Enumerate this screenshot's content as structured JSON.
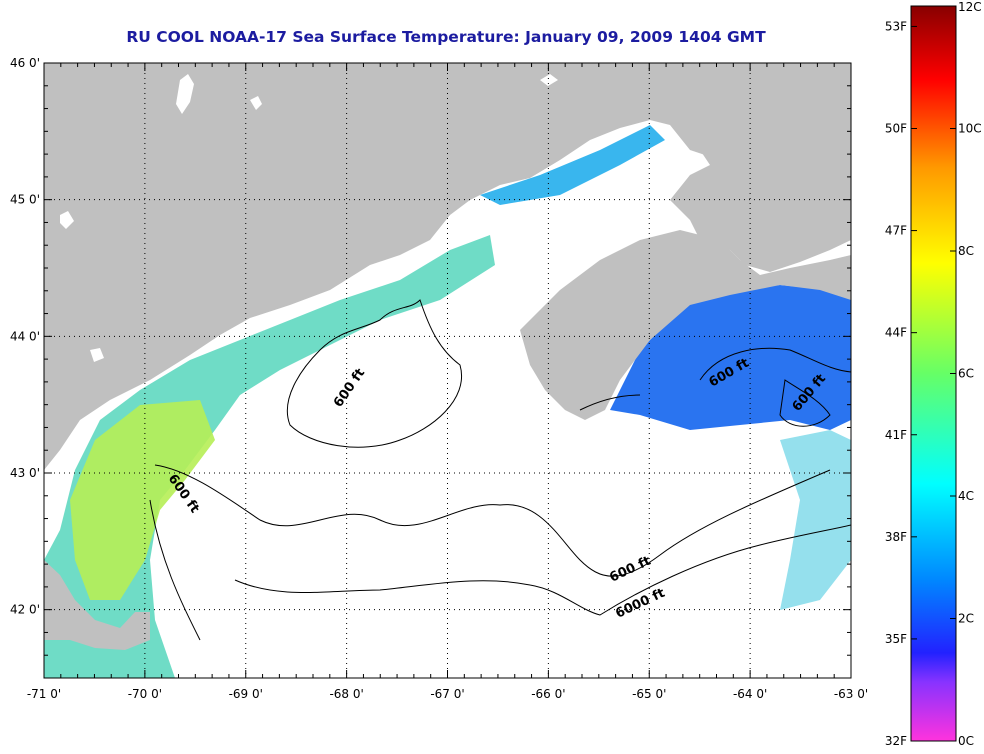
{
  "title": "RU COOL  NOAA-17  Sea Surface Temperature:  January 09, 2009 1404 GMT",
  "map": {
    "longitudes": [
      "-71 0'",
      "-70 0'",
      "-69 0'",
      "-68 0'",
      "-67 0'",
      "-66 0'",
      "-65 0'",
      "-64 0'",
      "-63 0'"
    ],
    "latitudes": [
      "46 0'",
      "45 0'",
      "44 0'",
      "43 0'",
      "42 0'"
    ],
    "lon_range": [
      -71,
      -63
    ],
    "lat_range": [
      41.5,
      46
    ],
    "contour_labels": [
      "600 ft",
      "600 ft",
      "600 ft",
      "600 ft",
      "600 ft",
      "6000 ft"
    ],
    "colors": {
      "land": "#c0c0c0",
      "ocean_nodata": "#ffffff",
      "frame": "#000000",
      "title": "#1c1ca0"
    }
  },
  "colorbar": {
    "fahrenheit_labels": [
      "53F",
      "50F",
      "47F",
      "44F",
      "41F",
      "38F",
      "35F",
      "32F"
    ],
    "celsius_labels": [
      "12C",
      "10C",
      "8C",
      "6C",
      "4C",
      "2C",
      "0C"
    ],
    "range_c": [
      0,
      12
    ],
    "range_f": [
      32,
      53.6
    ],
    "gradient": [
      "#ff33cc",
      "#9933ff",
      "#0000ff",
      "#0099ff",
      "#00ffff",
      "#66ff66",
      "#ffff00",
      "#ff9900",
      "#ff0000",
      "#990000"
    ]
  }
}
